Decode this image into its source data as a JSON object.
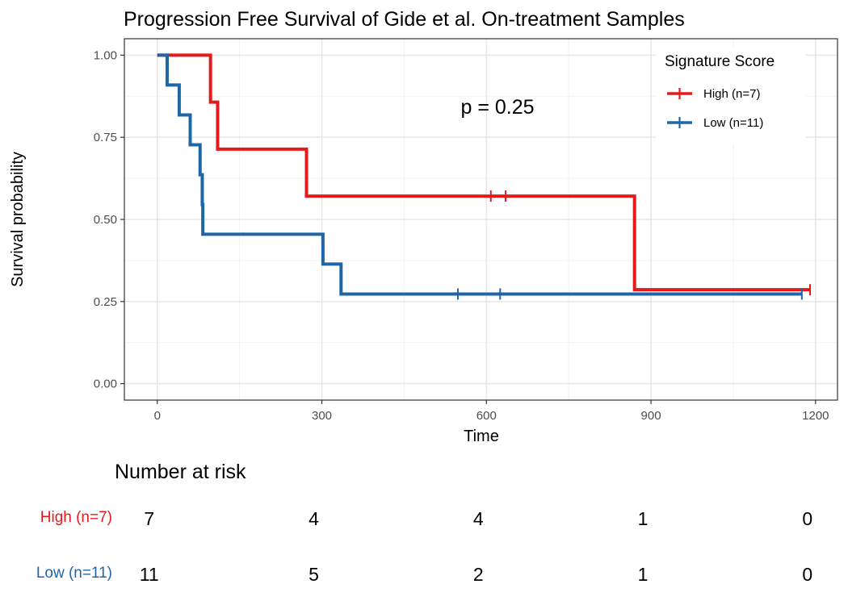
{
  "chart_data": {
    "type": "line",
    "title": "Progression Free Survival of Gide et al. On-treatment Samples",
    "xlabel": "Time",
    "ylabel": "Survival probability",
    "xlim": [
      -60,
      1240
    ],
    "ylim": [
      -0.05,
      1.05
    ],
    "x_ticks": [
      0,
      300,
      600,
      900,
      1200
    ],
    "y_ticks": [
      0.0,
      0.25,
      0.5,
      0.75,
      1.0
    ],
    "x_tick_labels": [
      "0",
      "300",
      "600",
      "900",
      "1200"
    ],
    "y_tick_labels": [
      "0.00",
      "0.25",
      "0.50",
      "0.75",
      "1.00"
    ],
    "grid": true,
    "annotation": "p = 0.25",
    "legend": {
      "title": "Signature Score",
      "position": "top-right"
    },
    "series": [
      {
        "name": "High (n=7)",
        "color": "#E41A1C",
        "steps": [
          [
            0,
            1.0
          ],
          [
            97,
            0.857
          ],
          [
            110,
            0.714
          ],
          [
            272,
            0.571
          ],
          [
            870,
            0.286
          ],
          [
            1190,
            0.286
          ]
        ],
        "censored": [
          [
            608,
            0.571
          ],
          [
            635,
            0.571
          ],
          [
            1190,
            0.286
          ]
        ]
      },
      {
        "name": "Low (n=11)",
        "color": "#1F66A6",
        "steps": [
          [
            0,
            1.0
          ],
          [
            18,
            0.909
          ],
          [
            40,
            0.818
          ],
          [
            60,
            0.727
          ],
          [
            78,
            0.636
          ],
          [
            82,
            0.545
          ],
          [
            83,
            0.455
          ],
          [
            302,
            0.364
          ],
          [
            335,
            0.273
          ],
          [
            1175,
            0.273
          ]
        ],
        "censored": [
          [
            548,
            0.273
          ],
          [
            625,
            0.273
          ],
          [
            1175,
            0.273
          ]
        ]
      }
    ]
  },
  "risk_table": {
    "title": "Number at risk",
    "times": [
      0,
      300,
      600,
      900,
      1200
    ],
    "rows": [
      {
        "label": "High (n=7)",
        "color": "#E41A1C",
        "counts": [
          "7",
          "4",
          "4",
          "1",
          "0"
        ]
      },
      {
        "label": "Low (n=11)",
        "color": "#1F66A6",
        "counts": [
          "11",
          "5",
          "2",
          "1",
          "0"
        ]
      }
    ]
  }
}
